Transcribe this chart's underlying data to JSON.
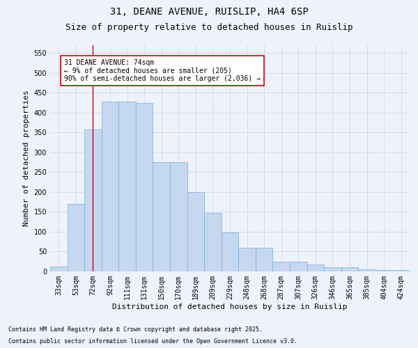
{
  "title1": "31, DEANE AVENUE, RUISLIP, HA4 6SP",
  "title2": "Size of property relative to detached houses in Ruislip",
  "xlabel": "Distribution of detached houses by size in Ruislip",
  "ylabel": "Number of detached properties",
  "categories": [
    "33sqm",
    "53sqm",
    "72sqm",
    "92sqm",
    "111sqm",
    "131sqm",
    "150sqm",
    "170sqm",
    "189sqm",
    "209sqm",
    "229sqm",
    "248sqm",
    "268sqm",
    "287sqm",
    "307sqm",
    "326sqm",
    "346sqm",
    "365sqm",
    "385sqm",
    "404sqm",
    "424sqm"
  ],
  "values": [
    12,
    170,
    358,
    428,
    428,
    425,
    275,
    275,
    200,
    148,
    98,
    60,
    60,
    25,
    25,
    18,
    10,
    10,
    6,
    4,
    3
  ],
  "bar_color": "#c5d8f0",
  "bar_edge_color": "#7aaddb",
  "grid_color": "#c8d4e8",
  "background_color": "#eef2fa",
  "vline_x_index": 2,
  "vline_color": "#cc0000",
  "annotation_line1": "31 DEANE AVENUE: 74sqm",
  "annotation_line2": "← 9% of detached houses are smaller (205)",
  "annotation_line3": "90% of semi-detached houses are larger (2,036) →",
  "annotation_box_color": "#ffffff",
  "annotation_box_edge": "#cc0000",
  "footnote1": "Contains HM Land Registry data © Crown copyright and database right 2025.",
  "footnote2": "Contains public sector information licensed under the Open Government Licence v3.0.",
  "ylim": [
    0,
    570
  ],
  "yticks": [
    0,
    50,
    100,
    150,
    200,
    250,
    300,
    350,
    400,
    450,
    500,
    550
  ],
  "title1_fontsize": 10,
  "title2_fontsize": 9,
  "tick_fontsize": 7,
  "label_fontsize": 8,
  "annotation_fontsize": 7,
  "footnote_fontsize": 6
}
